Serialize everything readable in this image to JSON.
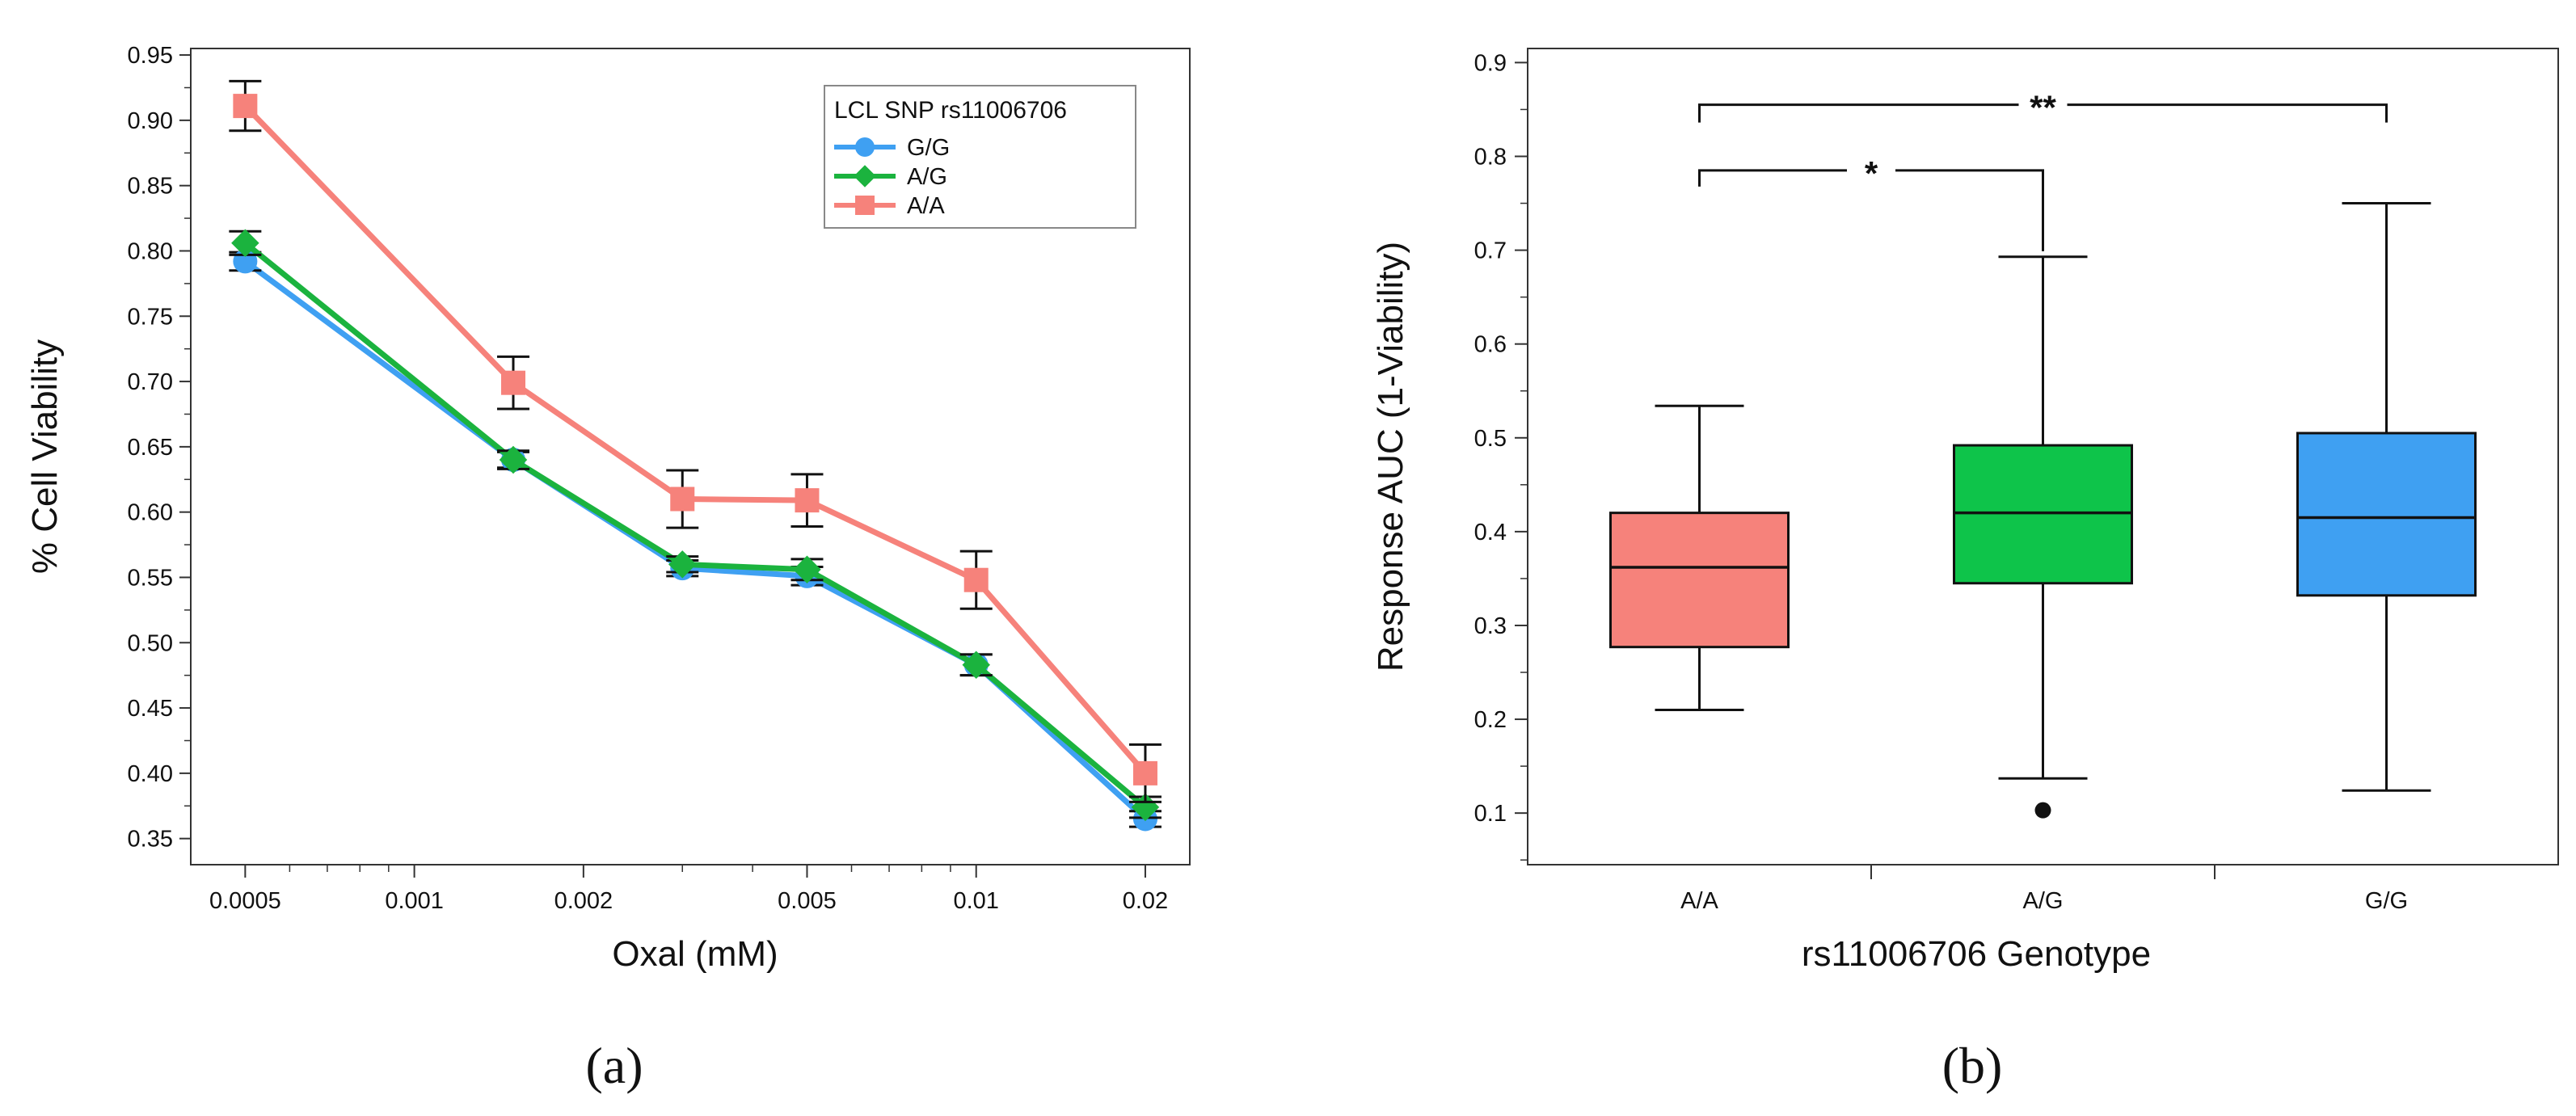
{
  "chart_data": [
    {
      "type": "line",
      "panel_label": "(a)",
      "xlabel": "Oxal (mM)",
      "ylabel": "% Cell Viability",
      "x_scale": "log",
      "xlim": [
        0.0004,
        0.024
      ],
      "ylim": [
        0.33,
        0.955
      ],
      "x_ticks": [
        0.0005,
        0.001,
        0.002,
        0.005,
        0.01,
        0.02
      ],
      "x_tick_labels": [
        "0.0005",
        "0.001",
        "0.002",
        "0.005",
        "0.01",
        "0.02"
      ],
      "y_ticks": [
        0.35,
        0.4,
        0.45,
        0.5,
        0.55,
        0.6,
        0.65,
        0.7,
        0.75,
        0.8,
        0.85,
        0.9,
        0.95
      ],
      "y_tick_labels": [
        "0.35",
        "0.40",
        "0.45",
        "0.50",
        "0.55",
        "0.60",
        "0.65",
        "0.70",
        "0.75",
        "0.80",
        "0.85",
        "0.90",
        "0.95"
      ],
      "grid": false,
      "legend": {
        "title": "LCL SNP rs11006706",
        "placement": "top-right"
      },
      "x": [
        0.0005,
        0.0015,
        0.003,
        0.005,
        0.01,
        0.02
      ],
      "series": [
        {
          "name": "G/G",
          "color": "#3fa0f2",
          "marker": "circle",
          "values": [
            0.792,
            0.64,
            0.557,
            0.551,
            0.483,
            0.365
          ],
          "error": [
            0.007,
            0.006,
            0.006,
            0.007,
            0.008,
            0.006
          ]
        },
        {
          "name": "A/G",
          "color": "#1bb33e",
          "marker": "diamond",
          "values": [
            0.806,
            0.64,
            0.56,
            0.556,
            0.483,
            0.374
          ],
          "error": [
            0.009,
            0.007,
            0.006,
            0.008,
            0.008,
            0.008
          ]
        },
        {
          "name": "A/A",
          "color": "#f6827b",
          "marker": "square",
          "values": [
            0.911,
            0.699,
            0.61,
            0.609,
            0.548,
            0.4
          ],
          "error": [
            0.019,
            0.02,
            0.022,
            0.02,
            0.022,
            0.022
          ]
        }
      ]
    },
    {
      "type": "box",
      "panel_label": "(b)",
      "xlabel": "rs11006706 Genotype",
      "ylabel": "Response AUC (1-Viability)",
      "categories": [
        "A/A",
        "A/G",
        "G/G"
      ],
      "ylim": [
        0.045,
        0.915
      ],
      "y_ticks": [
        0.1,
        0.2,
        0.3,
        0.4,
        0.5,
        0.6,
        0.7,
        0.8,
        0.9
      ],
      "y_tick_labels": [
        "0.1",
        "0.2",
        "0.3",
        "0.4",
        "0.5",
        "0.6",
        "0.7",
        "0.8",
        "0.9"
      ],
      "grid": false,
      "boxes": [
        {
          "category": "A/A",
          "color": "#f6827b",
          "whisker_low": 0.21,
          "q1": 0.277,
          "median": 0.362,
          "q3": 0.42,
          "whisker_high": 0.534,
          "outliers": []
        },
        {
          "category": "A/G",
          "color": "#0ec44a",
          "whisker_low": 0.137,
          "q1": 0.345,
          "median": 0.42,
          "q3": 0.492,
          "whisker_high": 0.693,
          "outliers": [
            0.103
          ]
        },
        {
          "category": "G/G",
          "color": "#3fa0f2",
          "whisker_low": 0.124,
          "q1": 0.332,
          "median": 0.415,
          "q3": 0.505,
          "whisker_high": 0.75,
          "outliers": []
        }
      ],
      "significance": [
        {
          "from": "A/A",
          "to": "A/G",
          "label": "*",
          "y": 0.785
        },
        {
          "from": "A/A",
          "to": "G/G",
          "label": "**",
          "y": 0.855
        }
      ]
    }
  ]
}
